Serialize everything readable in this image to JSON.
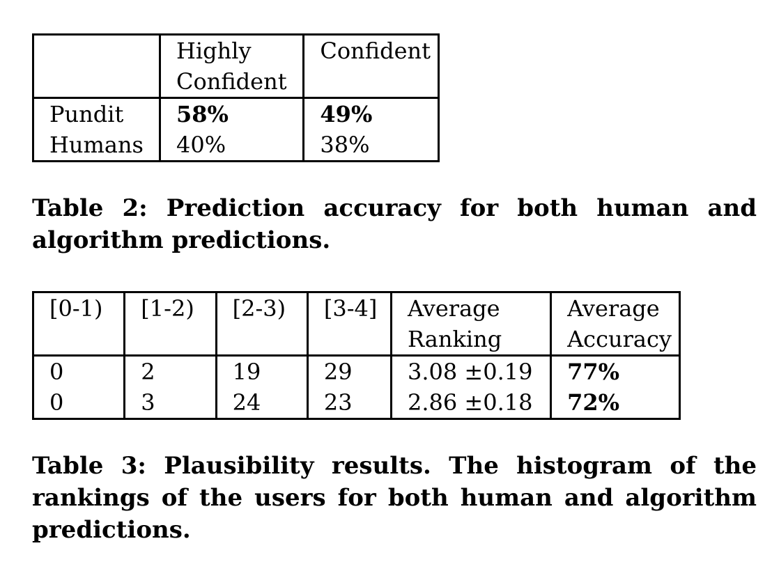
{
  "table2": {
    "headers": [
      "",
      "Highly\nConfident",
      "Confident"
    ],
    "header_line1": [
      "",
      "Highly",
      "Confident"
    ],
    "header_line2": [
      "",
      "Confident",
      ""
    ],
    "rows": [
      [
        "Pundit",
        "58%",
        "49%"
      ],
      [
        "Humans",
        "40%",
        "38%"
      ]
    ],
    "caption": "Table 2: Prediction accuracy for both human and algorithm predictions."
  },
  "table3": {
    "header_line1": [
      "[0-1)",
      "[1-2)",
      "[2-3)",
      "[3-4]",
      "Average",
      "Average"
    ],
    "header_line2": [
      "",
      "",
      "",
      "",
      "Ranking",
      "Accuracy"
    ],
    "rows": [
      [
        "0",
        "2",
        "19",
        "29",
        "3.08 ±0.19",
        "77%"
      ],
      [
        "0",
        "3",
        "24",
        "23",
        "2.86 ±0.18",
        "72%"
      ]
    ],
    "caption": "Table 3: Plausibility results. The histogram of the rankings of the users for both human and algorithm predictions."
  }
}
